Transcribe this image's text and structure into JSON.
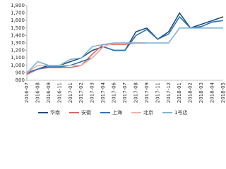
{
  "chart_data": {
    "type": "line",
    "categories": [
      "2016-07",
      "2016-08",
      "2016-09",
      "2016-11",
      "2017-01",
      "2017-02",
      "2017-03",
      "2017-04",
      "2017-06",
      "2017-07",
      "2017-08",
      "2017-09",
      "2017-11",
      "2017-12",
      "2018-01",
      "2018-02",
      "2018-03",
      "2018-04",
      "2018-05"
    ],
    "series": [
      {
        "name": "华南",
        "color": "#1f4e79",
        "values": [
          880,
          950,
          1000,
          1000,
          1050,
          1100,
          1200,
          1250,
          1200,
          1200,
          1450,
          1500,
          1350,
          1450,
          1700,
          1500,
          1550,
          1600,
          1650
        ]
      },
      {
        "name": "安徽",
        "color": "#e06666",
        "values": [
          880,
          950,
          970,
          970,
          970,
          1000,
          1150,
          1280,
          1280,
          1280,
          1300,
          1300,
          null,
          null,
          null,
          null,
          null,
          null,
          null
        ]
      },
      {
        "name": "上海",
        "color": "#2e75b6",
        "values": [
          900,
          950,
          980,
          980,
          1000,
          1050,
          1100,
          1250,
          1200,
          1200,
          1400,
          1480,
          1350,
          1420,
          1650,
          1500,
          1520,
          1580,
          1600
        ]
      },
      {
        "name": "北京",
        "color": "#f4b0a8",
        "values": [
          900,
          1000,
          1000,
          1000,
          1000,
          1000,
          1100,
          1250,
          1300,
          1300,
          1300,
          null,
          null,
          null,
          null,
          null,
          null,
          null,
          null
        ]
      },
      {
        "name": "1号店",
        "color": "#7fb2d9",
        "values": [
          900,
          1050,
          1000,
          1000,
          1080,
          1100,
          1250,
          1280,
          1300,
          1300,
          1300,
          1300,
          1300,
          1300,
          1500,
          1500,
          1500,
          1500,
          1500
        ]
      }
    ],
    "ylim": [
      800,
      1800
    ],
    "yticks": [
      800,
      900,
      {
        "value": 1000,
        "label": "1,000"
      },
      {
        "value": 1100,
        "label": "1,100"
      },
      {
        "value": 1200,
        "label": "1,200"
      },
      {
        "value": 1300,
        "label": "1,300"
      },
      {
        "value": 1400,
        "label": "1,400"
      },
      {
        "value": 1500,
        "label": "1,500"
      },
      {
        "value": 1600,
        "label": "1,600"
      },
      {
        "value": 1700,
        "label": "1,700"
      },
      {
        "value": 1800,
        "label": "1,800"
      }
    ],
    "legend": "bottom"
  }
}
